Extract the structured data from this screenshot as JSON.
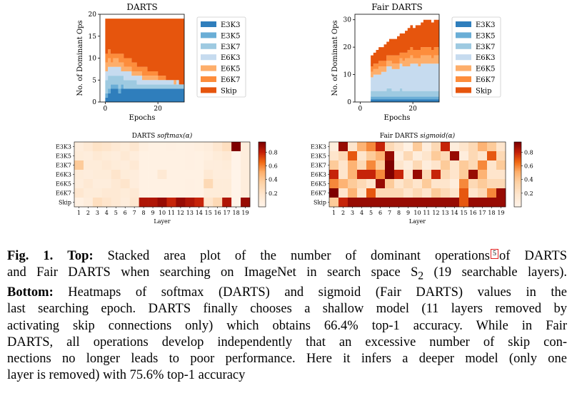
{
  "colors": {
    "E3K3": "#2f7ebc",
    "E3K5": "#6aaed6",
    "E3K7": "#9ecae1",
    "E6K3": "#c6dbef",
    "E6K5": "#fdae6b",
    "E6K7": "#fd8d3c",
    "Skip": "#e6550d"
  },
  "chart_data": [
    {
      "type": "area",
      "title": "DARTS",
      "xlabel": "Epochs",
      "ylabel": "No. of Dominant Ops",
      "xlim": [
        -2,
        30
      ],
      "ylim": [
        0,
        20
      ],
      "xticks": [
        0,
        20
      ],
      "yticks": [
        0,
        5,
        10,
        15,
        20
      ],
      "legend": "right",
      "x": [
        0,
        1,
        2,
        3,
        4,
        5,
        6,
        7,
        8,
        9,
        10,
        11,
        12,
        13,
        14,
        15,
        16,
        17,
        18,
        19,
        20,
        21,
        22,
        23,
        24,
        25,
        26,
        27,
        28,
        29
      ],
      "series": [
        {
          "name": "E3K3",
          "values": [
            1,
            2,
            3,
            3,
            3,
            2,
            3,
            3,
            3,
            3,
            3,
            3,
            3,
            3,
            3,
            3,
            3,
            3,
            3,
            3,
            3,
            3,
            3,
            3,
            3,
            3,
            3,
            3,
            3,
            3
          ]
        },
        {
          "name": "E3K5",
          "values": [
            1,
            1,
            1,
            1,
            1,
            1,
            1,
            0,
            0,
            0,
            0,
            0,
            0,
            0,
            0,
            0,
            0,
            0,
            0,
            0,
            0,
            0,
            0,
            0,
            0,
            0,
            0,
            0,
            0,
            0
          ]
        },
        {
          "name": "E3K7",
          "values": [
            3,
            3,
            2,
            2,
            2,
            3,
            2,
            2,
            2,
            2,
            2,
            2,
            1,
            1,
            1,
            1,
            1,
            1,
            1,
            1,
            1,
            1,
            1,
            1,
            1,
            1,
            1,
            1,
            1,
            1
          ]
        },
        {
          "name": "E6K3",
          "values": [
            2,
            2,
            2,
            2,
            2,
            2,
            1,
            2,
            2,
            2,
            1,
            1,
            2,
            2,
            1,
            1,
            1,
            1,
            1,
            1,
            1,
            1,
            1,
            1,
            1,
            1,
            0,
            1,
            0,
            0
          ]
        },
        {
          "name": "E6K5",
          "values": [
            2,
            2,
            1,
            2,
            2,
            1,
            2,
            1,
            1,
            1,
            1,
            1,
            1,
            1,
            1,
            1,
            1,
            1,
            1,
            1,
            0,
            0,
            0,
            0,
            0,
            0,
            1,
            0,
            0,
            0
          ]
        },
        {
          "name": "E6K7",
          "values": [
            2,
            2,
            2,
            1,
            1,
            2,
            2,
            2,
            2,
            2,
            2,
            2,
            1,
            1,
            2,
            2,
            1,
            1,
            1,
            1,
            1,
            1,
            1,
            0,
            0,
            0,
            0,
            0,
            0,
            0
          ]
        },
        {
          "name": "Skip",
          "values": [
            8,
            7,
            8,
            8,
            8,
            8,
            8,
            9,
            9,
            9,
            10,
            10,
            11,
            11,
            11,
            11,
            12,
            12,
            12,
            12,
            13,
            13,
            13,
            14,
            14,
            14,
            14,
            14,
            15,
            15
          ]
        }
      ]
    },
    {
      "type": "area",
      "title": "Fair DARTS",
      "xlabel": "Epochs",
      "ylabel": "No. of Dominant Ops",
      "xlim": [
        -2,
        30
      ],
      "ylim": [
        0,
        32
      ],
      "xticks": [
        0,
        20
      ],
      "yticks": [
        0,
        10,
        20,
        30
      ],
      "legend": "right",
      "x": [
        0,
        1,
        2,
        3,
        4,
        5,
        6,
        7,
        8,
        9,
        10,
        11,
        12,
        13,
        14,
        15,
        16,
        17,
        18,
        19,
        20,
        21,
        22,
        23,
        24,
        25,
        26,
        27,
        28,
        29
      ],
      "series": [
        {
          "name": "E3K3",
          "values": [
            0,
            0,
            0,
            0,
            1,
            1,
            1,
            1,
            1,
            1,
            1,
            1,
            1,
            1,
            1,
            1,
            1,
            1,
            1,
            1,
            1,
            1,
            1,
            1,
            1,
            1,
            1,
            1,
            1,
            1
          ]
        },
        {
          "name": "E3K5",
          "values": [
            0,
            0,
            0,
            0,
            1,
            1,
            1,
            1,
            1,
            1,
            1,
            1,
            1,
            1,
            1,
            1,
            1,
            1,
            1,
            1,
            1,
            1,
            1,
            1,
            1,
            1,
            1,
            1,
            1,
            1
          ]
        },
        {
          "name": "E3K7",
          "values": [
            0,
            0,
            0,
            0,
            2,
            2,
            2,
            2,
            2,
            2,
            3,
            3,
            2,
            2,
            2,
            3,
            2,
            2,
            2,
            2,
            2,
            2,
            2,
            2,
            2,
            2,
            2,
            2,
            2,
            2
          ]
        },
        {
          "name": "E6K3",
          "values": [
            0,
            0,
            0,
            0,
            5,
            6,
            6,
            6,
            7,
            7,
            8,
            8,
            8,
            8,
            8,
            9,
            9,
            9,
            9,
            10,
            10,
            10,
            9,
            10,
            10,
            10,
            10,
            10,
            10,
            10
          ]
        },
        {
          "name": "E6K5",
          "values": [
            0,
            0,
            0,
            0,
            2,
            2,
            2,
            3,
            2,
            2,
            2,
            2,
            2,
            2,
            2,
            2,
            2,
            3,
            3,
            3,
            2,
            2,
            3,
            3,
            3,
            3,
            3,
            2,
            3,
            3
          ]
        },
        {
          "name": "E6K7",
          "values": [
            0,
            0,
            0,
            0,
            2,
            2,
            2,
            2,
            2,
            2,
            2,
            2,
            3,
            3,
            3,
            2,
            3,
            2,
            3,
            3,
            3,
            3,
            3,
            3,
            3,
            3,
            3,
            3,
            3,
            3
          ]
        },
        {
          "name": "Skip",
          "values": [
            0,
            0,
            0,
            0,
            4,
            4,
            5,
            5,
            5,
            6,
            5,
            6,
            6,
            6,
            7,
            7,
            7,
            8,
            8,
            8,
            8,
            9,
            9,
            9,
            10,
            10,
            10,
            10,
            10,
            10
          ]
        }
      ]
    },
    {
      "type": "heatmap",
      "title": "DARTS softmax(α)",
      "xlabel": "Layer",
      "x": [
        "1",
        "2",
        "3",
        "4",
        "5",
        "6",
        "7",
        "8",
        "9",
        "10",
        "11",
        "12",
        "13",
        "14",
        "15",
        "16",
        "17",
        "18",
        "19"
      ],
      "y": [
        "E3K3",
        "E3K5",
        "E3K7",
        "E6K3",
        "E6K5",
        "E6K7",
        "Skip"
      ],
      "colorbar": {
        "range": [
          0,
          0.95
        ],
        "ticks": [
          0.2,
          0.4,
          0.6,
          0.8
        ]
      },
      "values": [
        [
          0.1,
          0.15,
          0.22,
          0.2,
          0.15,
          0.12,
          0.18,
          0.08,
          0.05,
          0.05,
          0.06,
          0.05,
          0.06,
          0.08,
          0.1,
          0.18,
          0.25,
          0.95,
          0.1
        ],
        [
          0.12,
          0.1,
          0.15,
          0.12,
          0.1,
          0.15,
          0.1,
          0.05,
          0.05,
          0.05,
          0.05,
          0.05,
          0.06,
          0.05,
          0.08,
          0.12,
          0.15,
          0.02,
          0.1
        ],
        [
          0.4,
          0.12,
          0.12,
          0.15,
          0.12,
          0.1,
          0.15,
          0.05,
          0.05,
          0.05,
          0.05,
          0.05,
          0.06,
          0.05,
          0.1,
          0.1,
          0.12,
          0.02,
          0.1
        ],
        [
          0.12,
          0.1,
          0.12,
          0.12,
          0.2,
          0.12,
          0.1,
          0.05,
          0.05,
          0.15,
          0.05,
          0.05,
          0.05,
          0.05,
          0.15,
          0.1,
          0.1,
          0.01,
          0.1
        ],
        [
          0.1,
          0.15,
          0.1,
          0.1,
          0.15,
          0.2,
          0.1,
          0.05,
          0.05,
          0.05,
          0.05,
          0.05,
          0.06,
          0.05,
          0.3,
          0.12,
          0.12,
          0.01,
          0.1
        ],
        [
          0.18,
          0.12,
          0.12,
          0.15,
          0.15,
          0.12,
          0.15,
          0.05,
          0.05,
          0.05,
          0.05,
          0.05,
          0.06,
          0.05,
          0.12,
          0.12,
          0.12,
          0.01,
          0.1
        ],
        [
          0.05,
          0.1,
          0.25,
          0.2,
          0.15,
          0.1,
          0.18,
          0.85,
          0.85,
          0.9,
          0.8,
          0.9,
          0.85,
          0.8,
          0.2,
          0.3,
          0.85,
          0.01,
          0.9
        ]
      ]
    },
    {
      "type": "heatmap",
      "title": "Fair DARTS sigmoid(α)",
      "xlabel": "Layer",
      "x": [
        "1",
        "2",
        "3",
        "4",
        "5",
        "6",
        "7",
        "8",
        "9",
        "10",
        "11",
        "12",
        "13",
        "14",
        "15",
        "16",
        "17",
        "18",
        "19"
      ],
      "y": [
        "E3K3",
        "E3K5",
        "E3K7",
        "E6K3",
        "E6K5",
        "E6K7",
        "Skip"
      ],
      "colorbar": {
        "range": [
          0,
          0.95
        ],
        "ticks": [
          0.2,
          0.4,
          0.6,
          0.8
        ]
      },
      "values": [
        [
          0.1,
          0.9,
          0.2,
          0.5,
          0.6,
          0.8,
          0.3,
          0.2,
          0.05,
          0.4,
          0.1,
          0.3,
          0.8,
          0.1,
          0.2,
          0.3,
          0.5,
          0.4,
          0.2
        ],
        [
          0.2,
          0.3,
          0.7,
          0.2,
          0.4,
          0.5,
          0.9,
          0.1,
          0.3,
          0.1,
          0.2,
          0.4,
          0.3,
          0.9,
          0.1,
          0.3,
          0.2,
          0.7,
          0.3
        ],
        [
          0.4,
          0.2,
          0.5,
          0.3,
          0.6,
          0.4,
          0.95,
          0.2,
          0.1,
          0.3,
          0.1,
          0.2,
          0.4,
          0.2,
          0.4,
          0.3,
          0.6,
          0.2,
          0.4
        ],
        [
          0.8,
          0.2,
          0.5,
          0.8,
          0.8,
          0.6,
          0.95,
          0.8,
          0.2,
          0.9,
          0.3,
          0.8,
          0.3,
          0.2,
          0.4,
          0.9,
          0.5,
          0.2,
          0.2
        ],
        [
          0.6,
          0.5,
          0.4,
          0.3,
          0.2,
          0.9,
          0.4,
          0.2,
          0.3,
          0.2,
          0.4,
          0.2,
          0.2,
          0.1,
          0.6,
          0.3,
          0.4,
          0.3,
          0.3
        ],
        [
          0.95,
          0.2,
          0.5,
          0.2,
          0.7,
          0.3,
          0.3,
          0.3,
          0.2,
          0.3,
          0.2,
          0.4,
          0.3,
          0.2,
          0.7,
          0.2,
          0.3,
          0.6,
          0.9
        ],
        [
          0.4,
          0.8,
          0.9,
          0.9,
          0.9,
          0.9,
          0.9,
          0.9,
          0.9,
          0.9,
          0.9,
          0.9,
          0.9,
          0.9,
          0.7,
          0.9,
          0.9,
          0.9,
          0.9
        ]
      ]
    }
  ],
  "caption": {
    "label_fig": "Fig. 1.",
    "label_top": "Top:",
    "part1": "Stacked area plot of the number of dominant operations",
    "ref": "5",
    "part2": "of DARTS",
    "line2a": "and Fair DARTS when searching on ImageNet in search space S",
    "line2sub": "2",
    "line2b": " (19 searchable layers).",
    "label_bottom": "Bottom:",
    "line3": "Heatmaps of softmax (DARTS) and sigmoid (Fair DARTS) values in the",
    "line4": "last searching epoch. DARTS finally chooses a shallow model (11 layers removed by",
    "line5": "activating skip connections only) which obtains 66.4% top-1 accuracy. While in Fair",
    "line6": "DARTS, all operations develop independently that an excessive number of skip con-",
    "line7": "nections no longer leads to poor performance. Here it infers a deeper model (only one",
    "line8": "layer is removed) with 75.6% top-1 accuracy"
  }
}
